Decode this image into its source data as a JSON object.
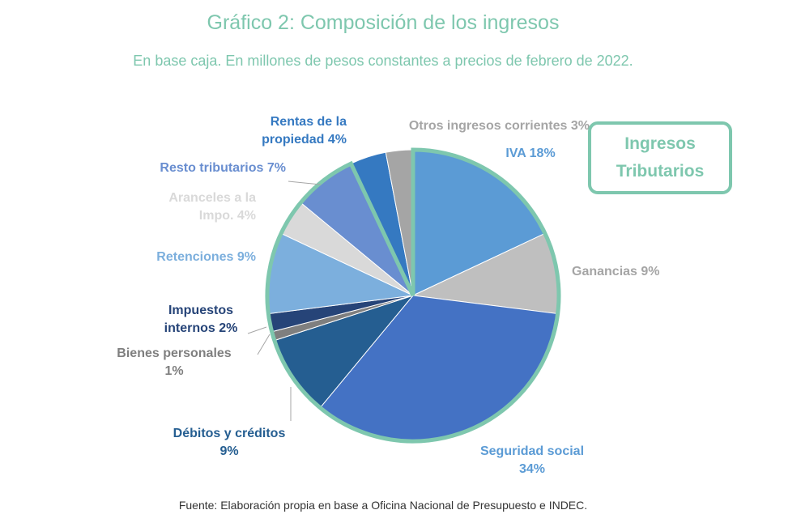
{
  "title": "Gráfico 2: Composición de los ingresos",
  "subtitle": "En base caja. En millones de pesos constantes a precios de febrero de 2022.",
  "source": "Fuente: Elaboración propia en base a Oficina Nacional de Presupuesto e INDEC.",
  "callout_lines": [
    "Ingresos",
    "Tributarios"
  ],
  "colors": {
    "accent": "#7ec7ae"
  },
  "chart_data": {
    "type": "pie",
    "title": "Gráfico 2: Composición de los ingresos",
    "subtitle": "En base caja. En millones de pesos constantes a precios de febrero de 2022.",
    "unit": "%",
    "slices": [
      {
        "label": "IVA",
        "value": 18,
        "color": "#5b9bd5",
        "label_lines": [
          "IVA 18%"
        ]
      },
      {
        "label": "Ganancias",
        "value": 9,
        "color": "#bfbfbf",
        "label_lines": [
          "Ganancias 9%"
        ]
      },
      {
        "label": "Seguridad social",
        "value": 34,
        "color": "#4472c4",
        "label_lines": [
          "Seguridad social",
          "34%"
        ]
      },
      {
        "label": "Débitos y créditos",
        "value": 9,
        "color": "#255e91",
        "label_lines": [
          "Débitos y créditos",
          "9%"
        ]
      },
      {
        "label": "Bienes personales",
        "value": 1,
        "color": "#7f7f7f",
        "label_lines": [
          "Bienes personales",
          "1%"
        ]
      },
      {
        "label": "Impuestos internos",
        "value": 2,
        "color": "#264478",
        "label_lines": [
          "Impuestos",
          "internos 2%"
        ]
      },
      {
        "label": "Retenciones",
        "value": 9,
        "color": "#7cafdd",
        "label_lines": [
          "Retenciones 9%"
        ]
      },
      {
        "label": "Aranceles a la Impo.",
        "value": 4,
        "color": "#d9d9d9",
        "label_lines": [
          "Aranceles a la",
          "Impo. 4%"
        ]
      },
      {
        "label": "Resto tributarios",
        "value": 7,
        "color": "#698ed0",
        "label_lines": [
          "Resto tributarios 7%"
        ]
      },
      {
        "label": "Rentas de la propiedad",
        "value": 4,
        "color": "#3579c1",
        "label_lines": [
          "Rentas de la",
          "propiedad 4%"
        ]
      },
      {
        "label": "Otros ingresos corrientes",
        "value": 3,
        "color": "#a5a5a5",
        "label_lines": [
          "Otros ingresos corrientes 3%"
        ]
      }
    ],
    "label_colors": [
      "#5b9bd5",
      "#a5a5a5",
      "#5b9bd5",
      "#255e91",
      "#7f7f7f",
      "#264478",
      "#7cafdd",
      "#d9d9d9",
      "#698ed0",
      "#3579c1",
      "#a5a5a5"
    ],
    "highlight_group": "Ingresos Tributarios",
    "legend": "none"
  }
}
